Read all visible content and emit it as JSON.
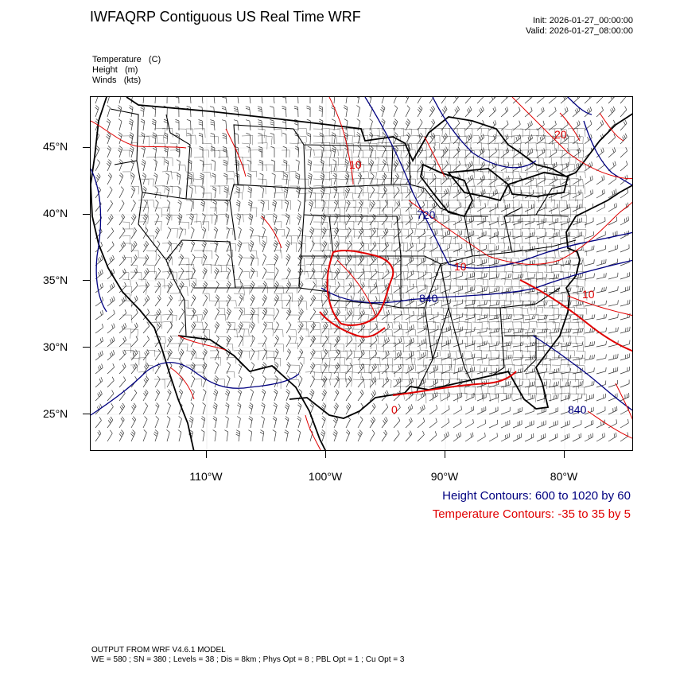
{
  "header": {
    "title": "IWFAQRP Contiguous US Real Time WRF",
    "init": "Init: 2026-01-27_00:00:00",
    "valid": "Valid: 2026-01-27_08:00:00"
  },
  "fields": [
    "Temperature   (C)",
    "Height   (m)",
    "Winds   (kts)"
  ],
  "lat_labels": [
    "45°N",
    "40°N",
    "35°N",
    "30°N",
    "25°N"
  ],
  "lon_labels": [
    "110°W",
    "100°W",
    "90°W",
    "80°W"
  ],
  "contour_labels": {
    "height": [
      "720",
      "840",
      "840"
    ],
    "temperature": [
      "20",
      "10",
      "10",
      "0",
      "10"
    ]
  },
  "legend": {
    "height": "Height Contours: 600 to 1020 by 60",
    "temperature": "Temperature Contours: -35 to 35 by 5"
  },
  "footer": {
    "line1": "OUTPUT FROM WRF V4.6.1 MODEL",
    "line2": "WE = 580 ; SN = 380 ; Levels = 38 ; Dis = 8km ; Phys Opt = 8 ; PBL Opt = 1 ; Cu Opt = 3"
  },
  "colors": {
    "height_contour": "#000080",
    "temperature_contour": "#e00000",
    "boundaries": "#000000"
  }
}
